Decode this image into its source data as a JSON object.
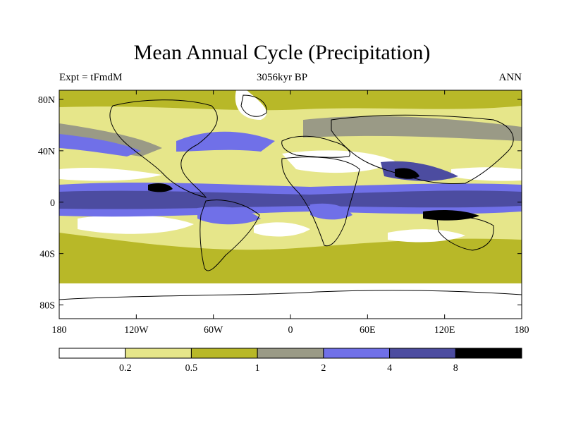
{
  "title": "Mean Annual Cycle (Precipitation)",
  "subtitle_left": "Expt = tFmdM",
  "subtitle_center": "3056kyr BP",
  "subtitle_right": "ANN",
  "lat_ticks": [
    "80N",
    "40N",
    "0",
    "40S",
    "80S"
  ],
  "lon_ticks": [
    "180",
    "120W",
    "60W",
    "0",
    "60E",
    "120E",
    "180"
  ],
  "legend": {
    "colors": [
      "#ffffff",
      "#e6e68a",
      "#b8b828",
      "#9a9a86",
      "#7070e8",
      "#4c4ca0",
      "#000000"
    ],
    "labels": [
      "0.2",
      "0.5",
      "1",
      "2",
      "4",
      "8"
    ]
  },
  "palette": {
    "white": "#ffffff",
    "light_yellow": "#e6e68a",
    "olive": "#b8b828",
    "gray": "#9a9a86",
    "blue": "#7070e8",
    "dark_blue": "#4c4ca0",
    "black": "#000000"
  }
}
